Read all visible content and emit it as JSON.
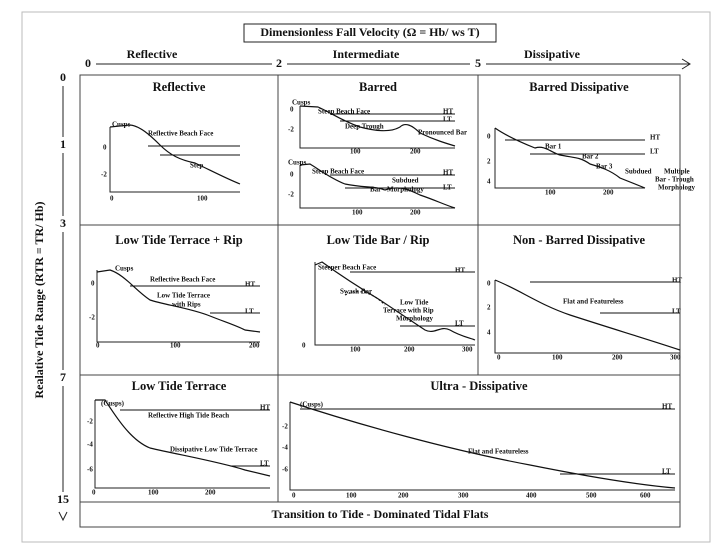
{
  "header": {
    "title": "Dimensionless Fall Velocity (Ω = Hb/ ws T)",
    "zones": [
      "Reflective",
      "Intermediate",
      "Dissipative"
    ],
    "ticks": [
      "0",
      "2",
      "5"
    ]
  },
  "side": {
    "title": "Realative Tide Range (RTR = TR/ Hb)",
    "ticks": [
      "0",
      "1",
      "3",
      "7",
      "15"
    ]
  },
  "panels": [
    {
      "title": "Reflective",
      "labels": [
        "Cusps",
        "Reflective Beach Face",
        "Step",
        "0",
        "-2",
        "0",
        "100"
      ]
    },
    {
      "title": "Barred",
      "labels": [
        "Cusps",
        "Steep Beach Face",
        "HT",
        "LT",
        "Deep Trough",
        "Pronounced Bar",
        "0",
        "-2",
        "100",
        "200",
        "Cusps",
        "Steep Beach Face",
        "HT",
        "Subdued",
        "Bar - Morphology",
        "LT",
        "0",
        "-2",
        "100",
        "200"
      ]
    },
    {
      "title": "Barred Dissipative",
      "labels": [
        "HT",
        "LT",
        "Bar 1",
        "Bar 2",
        "Bar 3",
        "Subdued",
        "Multiple",
        "Bar - Trough",
        "Morphology",
        "0",
        "2",
        "4",
        "100",
        "200"
      ]
    },
    {
      "title": "Low Tide Terrace + Rip",
      "labels": [
        "Cusps",
        "Reflective Beach Face",
        "HT",
        "Low Tide Terrace",
        "with Rips",
        "LT",
        "0",
        "-2",
        "0",
        "100",
        "200"
      ]
    },
    {
      "title": "Low Tide Bar / Rip",
      "labels": [
        "Steeper Beach Face",
        "HT",
        "Swash Bar",
        "Low Tide",
        "Terrace with Rip",
        "Morphology",
        "LT",
        "0",
        "100",
        "200",
        "300"
      ]
    },
    {
      "title": "Non - Barred Dissipative",
      "labels": [
        "HT",
        "Flat and Featureless",
        "LT",
        "0",
        "2",
        "4",
        "0",
        "100",
        "200",
        "300"
      ]
    },
    {
      "title": "Low Tide Terrace",
      "labels": [
        "(Cusps)",
        "HT",
        "Reflective High Tide Beach",
        "Dissipative Low Tide Terrace",
        "LT",
        "-2",
        "-4",
        "-6",
        "0",
        "100",
        "200"
      ]
    },
    {
      "title": "Ultra - Dissipative",
      "labels": [
        "(Cusps)",
        "HT",
        "Flat and Featureless",
        "LT",
        "-2",
        "-4",
        "-6",
        "0",
        "100",
        "200",
        "300",
        "400",
        "500",
        "600"
      ]
    }
  ],
  "footer": "Transition to Tide - Dominated Tidal Flats"
}
